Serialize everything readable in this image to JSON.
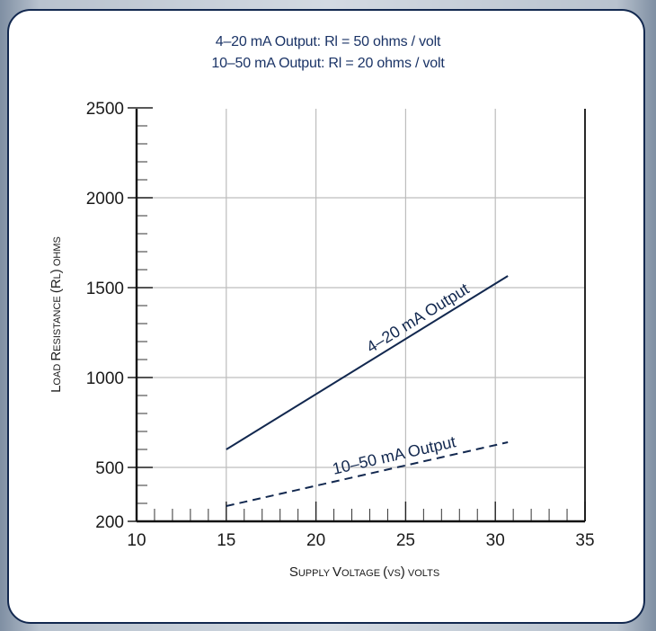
{
  "titles": {
    "line1": "4–20 mA Output: Rl = 50 ohms / volt",
    "line2": "10–50 mA Output: Rl = 20 ohms / volt"
  },
  "colors": {
    "frame": "#12284f",
    "series": "#12284f",
    "grid": "#bdbdbd",
    "title": "#1a3366"
  },
  "chart_data": {
    "type": "line",
    "title": "4–20 mA Output: Rl = 50 ohms / volt\n10–50 mA Output: Rl = 20 ohms / volt",
    "xlabel": "Supply Voltage (vs) volts",
    "ylabel": "Load Resistance (Rl) ohms",
    "xlim": [
      10,
      35
    ],
    "ylim": [
      200,
      2500
    ],
    "xticks": [
      10,
      15,
      20,
      25,
      30,
      35
    ],
    "yticks": [
      200,
      500,
      1000,
      1500,
      2000,
      2500
    ],
    "grid": true,
    "series": [
      {
        "name": "4–20 mA Output",
        "style": "solid",
        "x": [
          15,
          30.7
        ],
        "y": [
          600,
          1565
        ]
      },
      {
        "name": "10–50 mA Output",
        "style": "dashed",
        "x": [
          15,
          30.7
        ],
        "y": [
          285,
          640
        ]
      }
    ]
  }
}
